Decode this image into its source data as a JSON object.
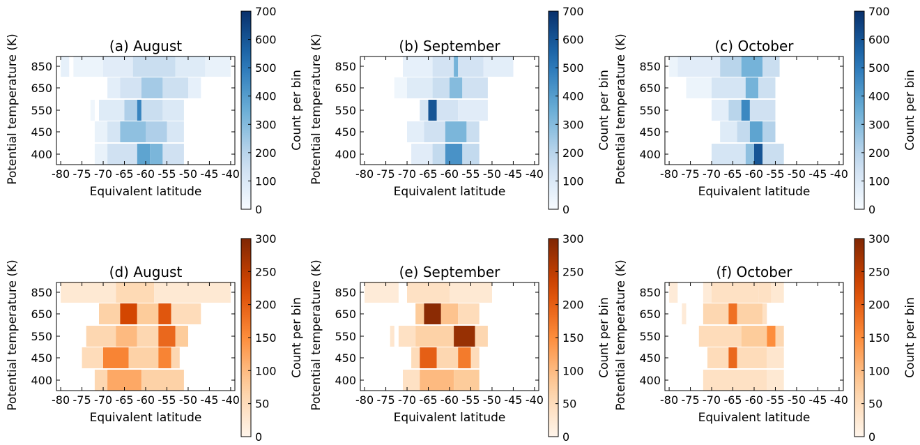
{
  "figure": {
    "ylabel": "Potential temperature (K)",
    "xlabel": "Equivalent latitude",
    "colorbar_label": "Count per bin"
  },
  "chart_data": [
    {
      "type": "heatmap",
      "title": "(a) August",
      "colormap": "blues",
      "ylim_cbar": [
        0,
        700
      ],
      "cbar_ticks": [
        0,
        100,
        200,
        300,
        400,
        500,
        600,
        700
      ],
      "x_ticks": [
        "-80",
        "-75",
        "-70",
        "-65",
        "-60",
        "-55",
        "-50",
        "-45",
        "-40"
      ],
      "y_categories": [
        "400",
        "450",
        "550",
        "650",
        "850"
      ],
      "rows": [
        {
          "y": "850",
          "cells": [
            [
              -80,
              -78,
              60
            ],
            [
              -77,
              -70,
              40
            ],
            [
              -70,
              -63,
              80
            ],
            [
              -63,
              -53,
              160
            ],
            [
              -53,
              -46,
              90
            ],
            [
              -46,
              -40,
              50
            ]
          ]
        },
        {
          "y": "650",
          "cells": [
            [
              -69,
              -66,
              70
            ],
            [
              -66,
              -61,
              130
            ],
            [
              -61,
              -56,
              240
            ],
            [
              -56,
              -50,
              150
            ],
            [
              -50,
              -47,
              60
            ]
          ]
        },
        {
          "y": "550",
          "cells": [
            [
              -73,
              -72,
              30
            ],
            [
              -71,
              -65,
              90
            ],
            [
              -65,
              -62,
              220
            ],
            [
              -62,
              -61,
              470
            ],
            [
              -61,
              -56,
              160
            ],
            [
              -56,
              -51,
              100
            ]
          ]
        },
        {
          "y": "450",
          "cells": [
            [
              -72,
              -69,
              50
            ],
            [
              -69,
              -66,
              120
            ],
            [
              -66,
              -60,
              280
            ],
            [
              -60,
              -55,
              220
            ],
            [
              -55,
              -51,
              110
            ]
          ]
        },
        {
          "y": "400",
          "cells": [
            [
              -72,
              -69,
              50
            ],
            [
              -69,
              -62,
              140
            ],
            [
              -62,
              -59,
              380
            ],
            [
              -59,
              -56,
              320
            ],
            [
              -56,
              -51,
              140
            ]
          ]
        }
      ]
    },
    {
      "type": "heatmap",
      "title": "(b) September",
      "colormap": "blues",
      "ylim_cbar": [
        0,
        700
      ],
      "cbar_ticks": [
        0,
        100,
        200,
        300,
        400,
        500,
        600,
        700
      ],
      "x_ticks": [
        "-80",
        "-75",
        "-70",
        "-65",
        "-60",
        "-55",
        "-50",
        "-45",
        "-40"
      ],
      "y_categories": [
        "400",
        "450",
        "550",
        "650",
        "850"
      ],
      "rows": [
        {
          "y": "850",
          "cells": [
            [
              -71,
              -64,
              60
            ],
            [
              -64,
              -59,
              130
            ],
            [
              -59,
              -58,
              330
            ],
            [
              -58,
              -52,
              130
            ],
            [
              -52,
              -45,
              70
            ]
          ]
        },
        {
          "y": "650",
          "cells": [
            [
              -73,
              -70,
              30
            ],
            [
              -70,
              -64,
              90
            ],
            [
              -64,
              -60,
              160
            ],
            [
              -60,
              -57,
              300
            ],
            [
              -57,
              -51,
              140
            ]
          ]
        },
        {
          "y": "550",
          "cells": [
            [
              -67,
              -65,
              120
            ],
            [
              -65,
              -63,
              600
            ],
            [
              -63,
              -58,
              130
            ],
            [
              -58,
              -51,
              80
            ]
          ]
        },
        {
          "y": "450",
          "cells": [
            [
              -70,
              -66,
              70
            ],
            [
              -66,
              -61,
              140
            ],
            [
              -61,
              -56,
              320
            ],
            [
              -56,
              -53,
              160
            ]
          ]
        },
        {
          "y": "400",
          "cells": [
            [
              -69,
              -64,
              80
            ],
            [
              -64,
              -61,
              180
            ],
            [
              -61,
              -57,
              430
            ],
            [
              -57,
              -53,
              180
            ]
          ]
        }
      ]
    },
    {
      "type": "heatmap",
      "title": "(c) October",
      "colormap": "blues",
      "ylim_cbar": [
        0,
        700
      ],
      "cbar_ticks": [
        0,
        100,
        200,
        300,
        400,
        500,
        600,
        700
      ],
      "x_ticks": [
        "-80",
        "-75",
        "-70",
        "-65",
        "-60",
        "-55",
        "-50",
        "-45",
        "-40"
      ],
      "y_categories": [
        "400",
        "450",
        "550",
        "650",
        "850"
      ],
      "rows": [
        {
          "y": "850",
          "cells": [
            [
              -80,
              -78,
              40
            ],
            [
              -78,
              -68,
              80
            ],
            [
              -68,
              -63,
              200
            ],
            [
              -63,
              -58,
              330
            ],
            [
              -58,
              -54,
              160
            ]
          ]
        },
        {
          "y": "650",
          "cells": [
            [
              -76,
              -70,
              40
            ],
            [
              -70,
              -62,
              120
            ],
            [
              -62,
              -59,
              330
            ],
            [
              -59,
              -55,
              150
            ]
          ]
        },
        {
          "y": "550",
          "cells": [
            [
              -70,
              -66,
              70
            ],
            [
              -66,
              -63,
              200
            ],
            [
              -63,
              -61,
              460
            ],
            [
              -61,
              -55,
              140
            ]
          ]
        },
        {
          "y": "450",
          "cells": [
            [
              -68,
              -64,
              90
            ],
            [
              -64,
              -61,
              180
            ],
            [
              -61,
              -58,
              380
            ],
            [
              -58,
              -55,
              210
            ]
          ]
        },
        {
          "y": "400",
          "cells": [
            [
              -70,
              -62,
              120
            ],
            [
              -62,
              -60,
              280
            ],
            [
              -60,
              -58,
              600
            ],
            [
              -58,
              -53,
              160
            ]
          ]
        }
      ]
    },
    {
      "type": "heatmap",
      "title": "(d) August",
      "colormap": "oranges",
      "ylim_cbar": [
        0,
        300
      ],
      "cbar_ticks": [
        0,
        50,
        100,
        150,
        200,
        250,
        300
      ],
      "x_ticks": [
        "-80",
        "-75",
        "-70",
        "-65",
        "-60",
        "-55",
        "-50",
        "-45",
        "-40"
      ],
      "y_categories": [
        "400",
        "450",
        "550",
        "650",
        "850"
      ],
      "rows": [
        {
          "y": "850",
          "cells": [
            [
              -80,
              -67,
              25
            ],
            [
              -67,
              -58,
              55
            ],
            [
              -58,
              -40,
              25
            ]
          ]
        },
        {
          "y": "650",
          "cells": [
            [
              -71,
              -66,
              70
            ],
            [
              -66,
              -62,
              230
            ],
            [
              -62,
              -57,
              80
            ],
            [
              -57,
              -54,
              210
            ],
            [
              -54,
              -47,
              50
            ]
          ]
        },
        {
          "y": "550",
          "cells": [
            [
              -74,
              -67,
              60
            ],
            [
              -67,
              -62,
              100
            ],
            [
              -62,
              -57,
              60
            ],
            [
              -57,
              -53,
              190
            ],
            [
              -53,
              -50,
              80
            ]
          ]
        },
        {
          "y": "450",
          "cells": [
            [
              -75,
              -70,
              50
            ],
            [
              -70,
              -64,
              160
            ],
            [
              -64,
              -57,
              70
            ],
            [
              -57,
              -54,
              160
            ],
            [
              -54,
              -52,
              60
            ]
          ]
        },
        {
          "y": "400",
          "cells": [
            [
              -72,
              -69,
              60
            ],
            [
              -69,
              -61,
              120
            ],
            [
              -61,
              -51,
              70
            ]
          ]
        }
      ]
    },
    {
      "type": "heatmap",
      "title": "(e) September",
      "colormap": "oranges",
      "ylim_cbar": [
        0,
        300
      ],
      "cbar_ticks": [
        0,
        50,
        100,
        150,
        200,
        250,
        300
      ],
      "x_ticks": [
        "-80",
        "-75",
        "-70",
        "-65",
        "-60",
        "-55",
        "-50",
        "-45",
        "-40"
      ],
      "y_categories": [
        "400",
        "450",
        "550",
        "650",
        "850"
      ],
      "rows": [
        {
          "y": "850",
          "cells": [
            [
              -80,
              -72,
              20
            ],
            [
              -70,
              -60,
              40
            ],
            [
              -60,
              -50,
              25
            ]
          ]
        },
        {
          "y": "650",
          "cells": [
            [
              -68,
              -66,
              80
            ],
            [
              -66,
              -62,
              290
            ],
            [
              -62,
              -58,
              90
            ],
            [
              -58,
              -53,
              50
            ]
          ]
        },
        {
          "y": "550",
          "cells": [
            [
              -74,
              -73,
              30
            ],
            [
              -72,
              -68,
              40
            ],
            [
              -68,
              -59,
              70
            ],
            [
              -59,
              -54,
              280
            ],
            [
              -54,
              -51,
              60
            ]
          ]
        },
        {
          "y": "450",
          "cells": [
            [
              -69,
              -67,
              50
            ],
            [
              -67,
              -63,
              200
            ],
            [
              -63,
              -58,
              60
            ],
            [
              -58,
              -55,
              170
            ],
            [
              -55,
              -53,
              50
            ]
          ]
        },
        {
          "y": "400",
          "cells": [
            [
              -71,
              -67,
              40
            ],
            [
              -67,
              -59,
              100
            ],
            [
              -59,
              -53,
              80
            ]
          ]
        }
      ]
    },
    {
      "type": "heatmap",
      "title": "(f) October",
      "colormap": "oranges",
      "ylim_cbar": [
        0,
        300
      ],
      "cbar_ticks": [
        0,
        50,
        100,
        150,
        200,
        250,
        300
      ],
      "x_ticks": [
        "-80",
        "-75",
        "-70",
        "-65",
        "-60",
        "-55",
        "-50",
        "-45",
        "-40"
      ],
      "y_categories": [
        "400",
        "450",
        "550",
        "650",
        "850"
      ],
      "rows": [
        {
          "y": "850",
          "cells": [
            [
              -80,
              -78,
              20
            ],
            [
              -72,
              -70,
              20
            ],
            [
              -70,
              -59,
              40
            ],
            [
              -59,
              -56,
              40
            ],
            [
              -56,
              -53,
              25
            ]
          ]
        },
        {
          "y": "650",
          "cells": [
            [
              -77,
              -76,
              20
            ],
            [
              -72,
              -66,
              60
            ],
            [
              -66,
              -64,
              180
            ],
            [
              -64,
              -58,
              70
            ],
            [
              -58,
              -57,
              40
            ]
          ]
        },
        {
          "y": "550",
          "cells": [
            [
              -73,
              -63,
              50
            ],
            [
              -63,
              -57,
              80
            ],
            [
              -57,
              -55,
              150
            ],
            [
              -55,
              -53,
              60
            ]
          ]
        },
        {
          "y": "450",
          "cells": [
            [
              -71,
              -66,
              50
            ],
            [
              -66,
              -64,
              190
            ],
            [
              -64,
              -57,
              50
            ],
            [
              -57,
              -53,
              30
            ]
          ]
        },
        {
          "y": "400",
          "cells": [
            [
              -72,
              -57,
              40
            ],
            [
              -57,
              -53,
              25
            ]
          ]
        }
      ]
    }
  ]
}
